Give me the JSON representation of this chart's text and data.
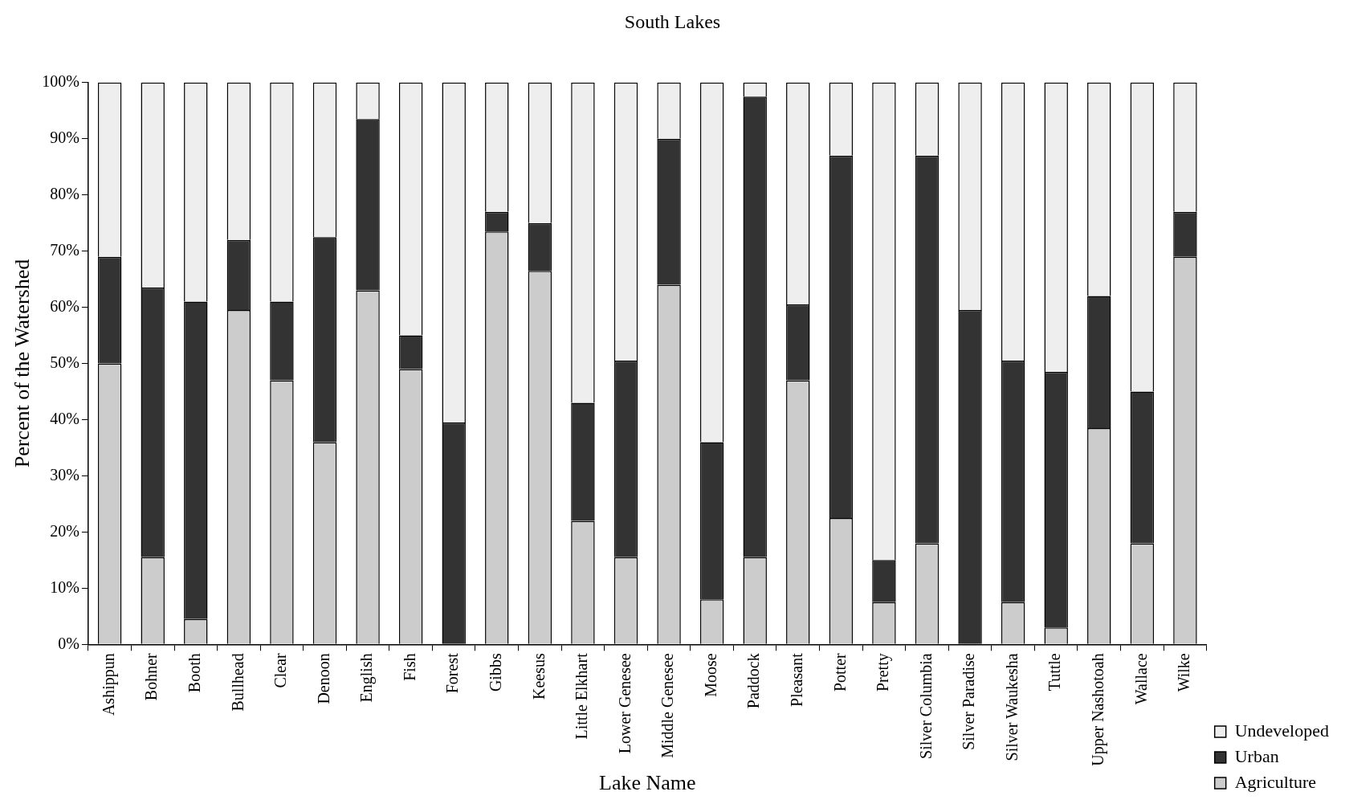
{
  "chart_data": {
    "type": "bar",
    "title": "South Lakes",
    "xlabel": "Lake Name",
    "ylabel": "Percent of the Watershed",
    "stacked": true,
    "grid": false,
    "legend": "bottom right",
    "categories": [
      "Ashippun",
      "Bohner",
      "Booth",
      "Bullhead",
      "Clear",
      "Denoon",
      "English",
      "Fish",
      "Forest",
      "Gibbs",
      "Keesus",
      "Little Elkhart",
      "Lower Genesee",
      "Middle Genesee",
      "Moose",
      "Paddock",
      "Pleasant",
      "Potter",
      "Pretty",
      "Silver Columbia",
      "Silver Paradise",
      "Silver Waukesha",
      "Tuttle",
      "Upper Nashotoah",
      "Wallace",
      "Wilke"
    ],
    "series": [
      {
        "name": "Agriculture",
        "color": "#cccccc",
        "values": [
          50,
          15.5,
          4.5,
          59.5,
          47,
          36,
          63,
          49,
          0,
          73.5,
          66.5,
          22,
          15.5,
          64,
          8,
          15.5,
          47,
          22.5,
          7.5,
          18,
          0,
          7.5,
          3,
          38.5,
          18,
          69
        ]
      },
      {
        "name": "Urban",
        "color": "#333333",
        "values": [
          19,
          48,
          56.5,
          12.5,
          14,
          36.5,
          30.5,
          6,
          39.5,
          3.5,
          8.5,
          21,
          35,
          26,
          28,
          82,
          13.5,
          64.5,
          7.5,
          69,
          59.5,
          43,
          45.5,
          23.5,
          27,
          8
        ]
      },
      {
        "name": "Undeveloped",
        "color": "#eeeeee",
        "values": [
          31,
          36.5,
          39,
          28,
          39,
          27.5,
          6.5,
          45,
          60.5,
          23,
          25,
          57,
          49.5,
          10,
          64,
          2.5,
          39.5,
          13,
          85,
          13,
          40.5,
          49.5,
          51.5,
          38,
          55,
          23
        ]
      }
    ],
    "ylim": [
      0,
      100
    ],
    "yticks": [
      {
        "value": 0,
        "label": "0%"
      },
      {
        "value": 10,
        "label": "10%"
      },
      {
        "value": 20,
        "label": "20%"
      },
      {
        "value": 30,
        "label": "30%"
      },
      {
        "value": 40,
        "label": "40%"
      },
      {
        "value": 50,
        "label": "50%"
      },
      {
        "value": 60,
        "label": "60%"
      },
      {
        "value": 70,
        "label": "70%"
      },
      {
        "value": 80,
        "label": "80%"
      },
      {
        "value": 90,
        "label": "90%"
      },
      {
        "value": 100,
        "label": "100%"
      }
    ]
  }
}
